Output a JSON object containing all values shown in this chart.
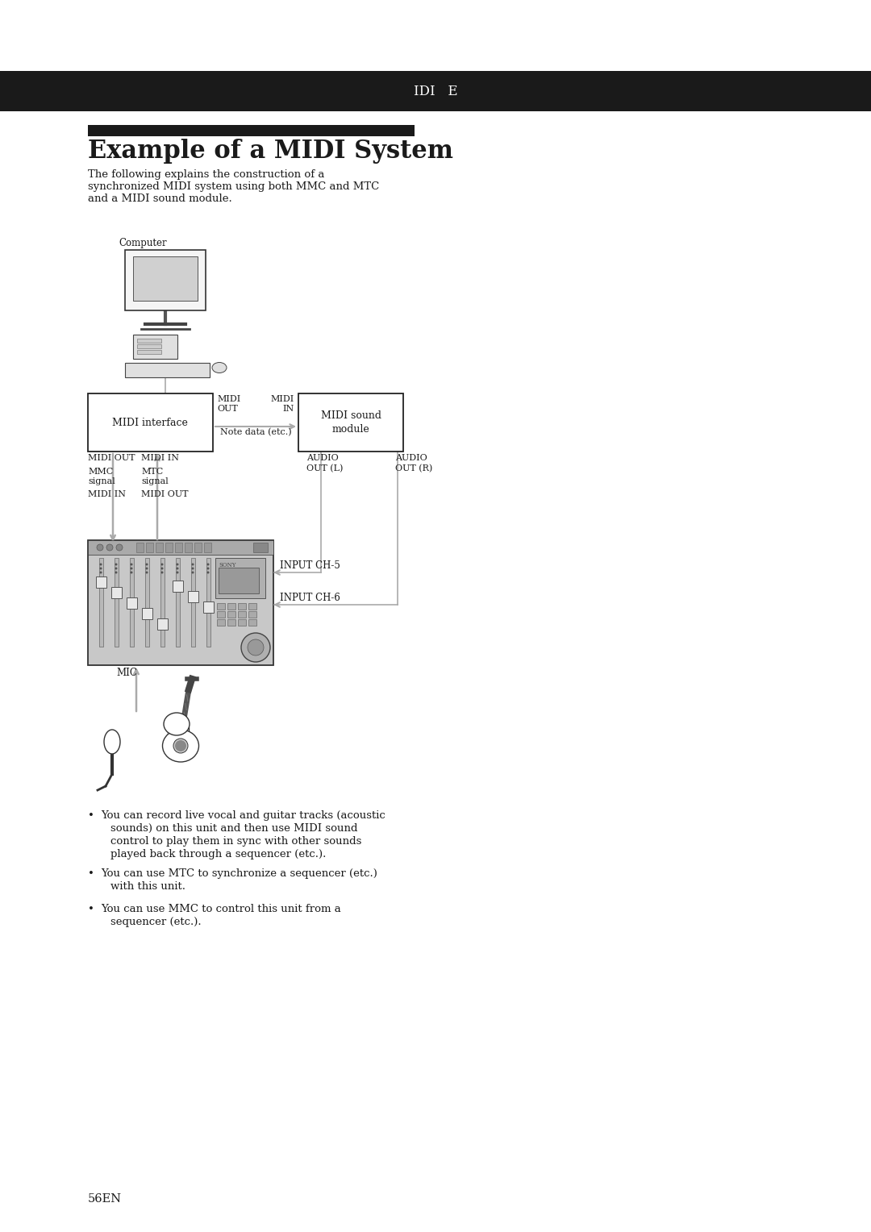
{
  "bg_color": "#ffffff",
  "page_width": 10.8,
  "page_height": 15.28,
  "header_bar_color": "#1a1a1a",
  "title": "Example of a MIDI System",
  "subtitle_line1": "The following explains the construction of a",
  "subtitle_line2": "synchronized MIDI system using both MMC and MTC",
  "subtitle_line3": "and a MIDI sound module.",
  "page_number": "56EN",
  "bullet1_line1": "You can record live vocal and guitar tracks (acoustic",
  "bullet1_line2": "sounds) on this unit and then use MIDI sound",
  "bullet1_line3": "control to play them in sync with other sounds",
  "bullet1_line4": "played back through a sequencer (etc.).",
  "bullet2_line1": "You can use MTC to synchronize a sequencer (etc.)",
  "bullet2_line2": "with this unit.",
  "bullet3_line1": "You can use MMC to control this unit from a",
  "bullet3_line2": "sequencer (etc.).",
  "diagram_gray": "#aaaaaa",
  "diagram_dark": "#333333",
  "device_fill": "#c8c8c8",
  "box_edge": "#222222"
}
